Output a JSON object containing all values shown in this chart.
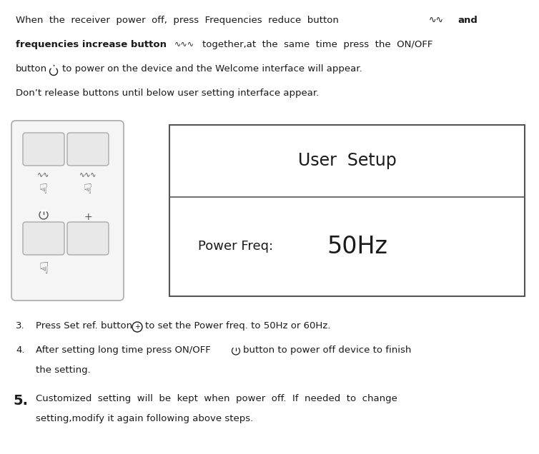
{
  "bg_color": "#ffffff",
  "text_color": "#1a1a1a",
  "figsize": [
    7.54,
    6.36
  ],
  "dpi": 100,
  "screen_title": "User  Setup",
  "screen_body": "Power Freq: ",
  "screen_body_large": "50Hz"
}
